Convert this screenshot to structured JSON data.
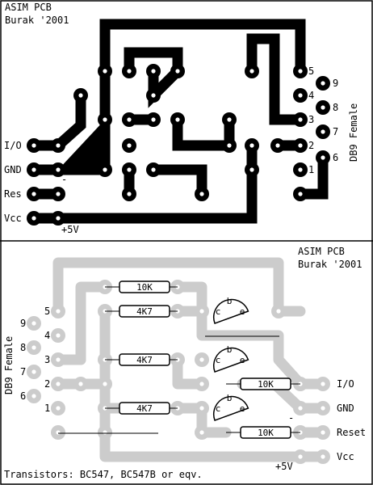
{
  "pcb": {
    "title": "ASIM PCB",
    "author": "Burak '2001",
    "connector_label": "DB9 Female",
    "pin_numbers": [
      "5",
      "4",
      "3",
      "2",
      "1",
      "9",
      "8",
      "7",
      "6"
    ],
    "io_labels": [
      "I/O",
      "GND",
      "Res",
      "Vcc"
    ],
    "supply_label": "+5V",
    "minus_label": "-"
  },
  "layout": {
    "title": "ASIM PCB",
    "author": "Burak '2001",
    "connector_label": "DB9 Female",
    "pin_numbers": [
      "5",
      "4",
      "3",
      "2",
      "1",
      "9",
      "8",
      "7",
      "6"
    ],
    "io_labels": [
      "I/O",
      "GND",
      "Reset",
      "Vcc"
    ],
    "supply_label": "+5V",
    "minus_label": "-",
    "resistors": [
      "10K",
      "4K7",
      "4K7",
      "4K7",
      "10K",
      "10K"
    ],
    "transistor_pins": [
      "b",
      "c",
      "e"
    ],
    "footnote": "Transistors: BC547, BC547B or eqv."
  },
  "colors": {
    "copper": "#000000",
    "silkscreen": "#cccccc",
    "background": "#ffffff"
  }
}
